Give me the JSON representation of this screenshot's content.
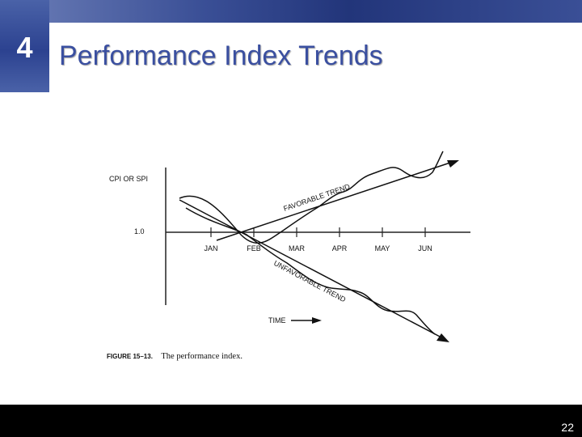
{
  "slide": {
    "number": "4",
    "title": "Performance Index Trends",
    "page_number": "22"
  },
  "colors": {
    "band": "#22357a",
    "title": "#3a4fa0",
    "footer": "#000000"
  },
  "chart_data": {
    "type": "line",
    "ylabel": "CPI OR SPI",
    "y_reference": {
      "value": 1.0,
      "label": "1.0"
    },
    "categories": [
      "JAN",
      "FEB",
      "MAR",
      "APR",
      "MAY",
      "JUN"
    ],
    "series": [
      {
        "name": "FAVORABLE TREND"
      },
      {
        "name": "UNFAVORABLE TREND"
      }
    ],
    "time_label": "TIME",
    "caption_label": "FIGURE 15–13.",
    "caption_text": "The performance index."
  }
}
